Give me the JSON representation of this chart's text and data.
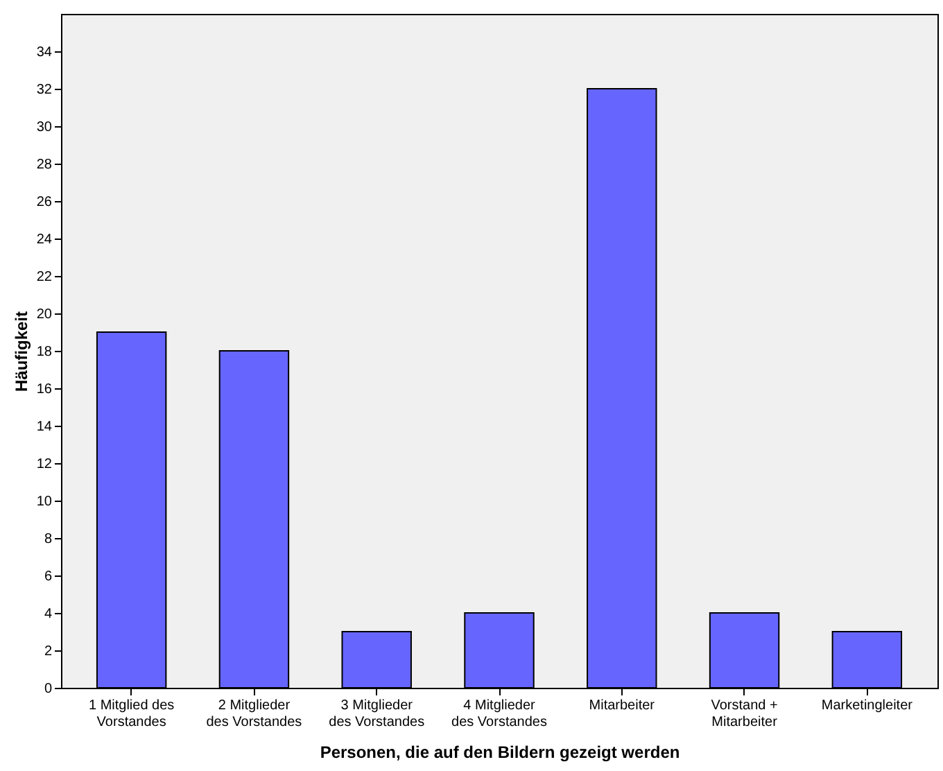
{
  "chart_data": {
    "type": "bar",
    "xlabel": "Personen, die auf den Bildern gezeigt werden",
    "ylabel": "Häufigkeit",
    "categories": [
      "1 Mitglied des Vorstandes",
      "2 Mitglieder des Vorstandes",
      "3 Mitglieder des Vorstandes",
      "4 Mitglieder des Vorstandes",
      "Mitarbeiter",
      "Vorstand + Mitarbeiter",
      "Marketingleiter"
    ],
    "values": [
      19,
      18,
      3,
      4,
      32,
      4,
      3
    ],
    "color": "#6666ff",
    "ylim": [
      0,
      36
    ],
    "yticks": [
      0,
      2,
      4,
      6,
      8,
      10,
      12,
      14,
      16,
      18,
      20,
      22,
      24,
      26,
      28,
      30,
      32,
      34
    ],
    "grid": false
  }
}
